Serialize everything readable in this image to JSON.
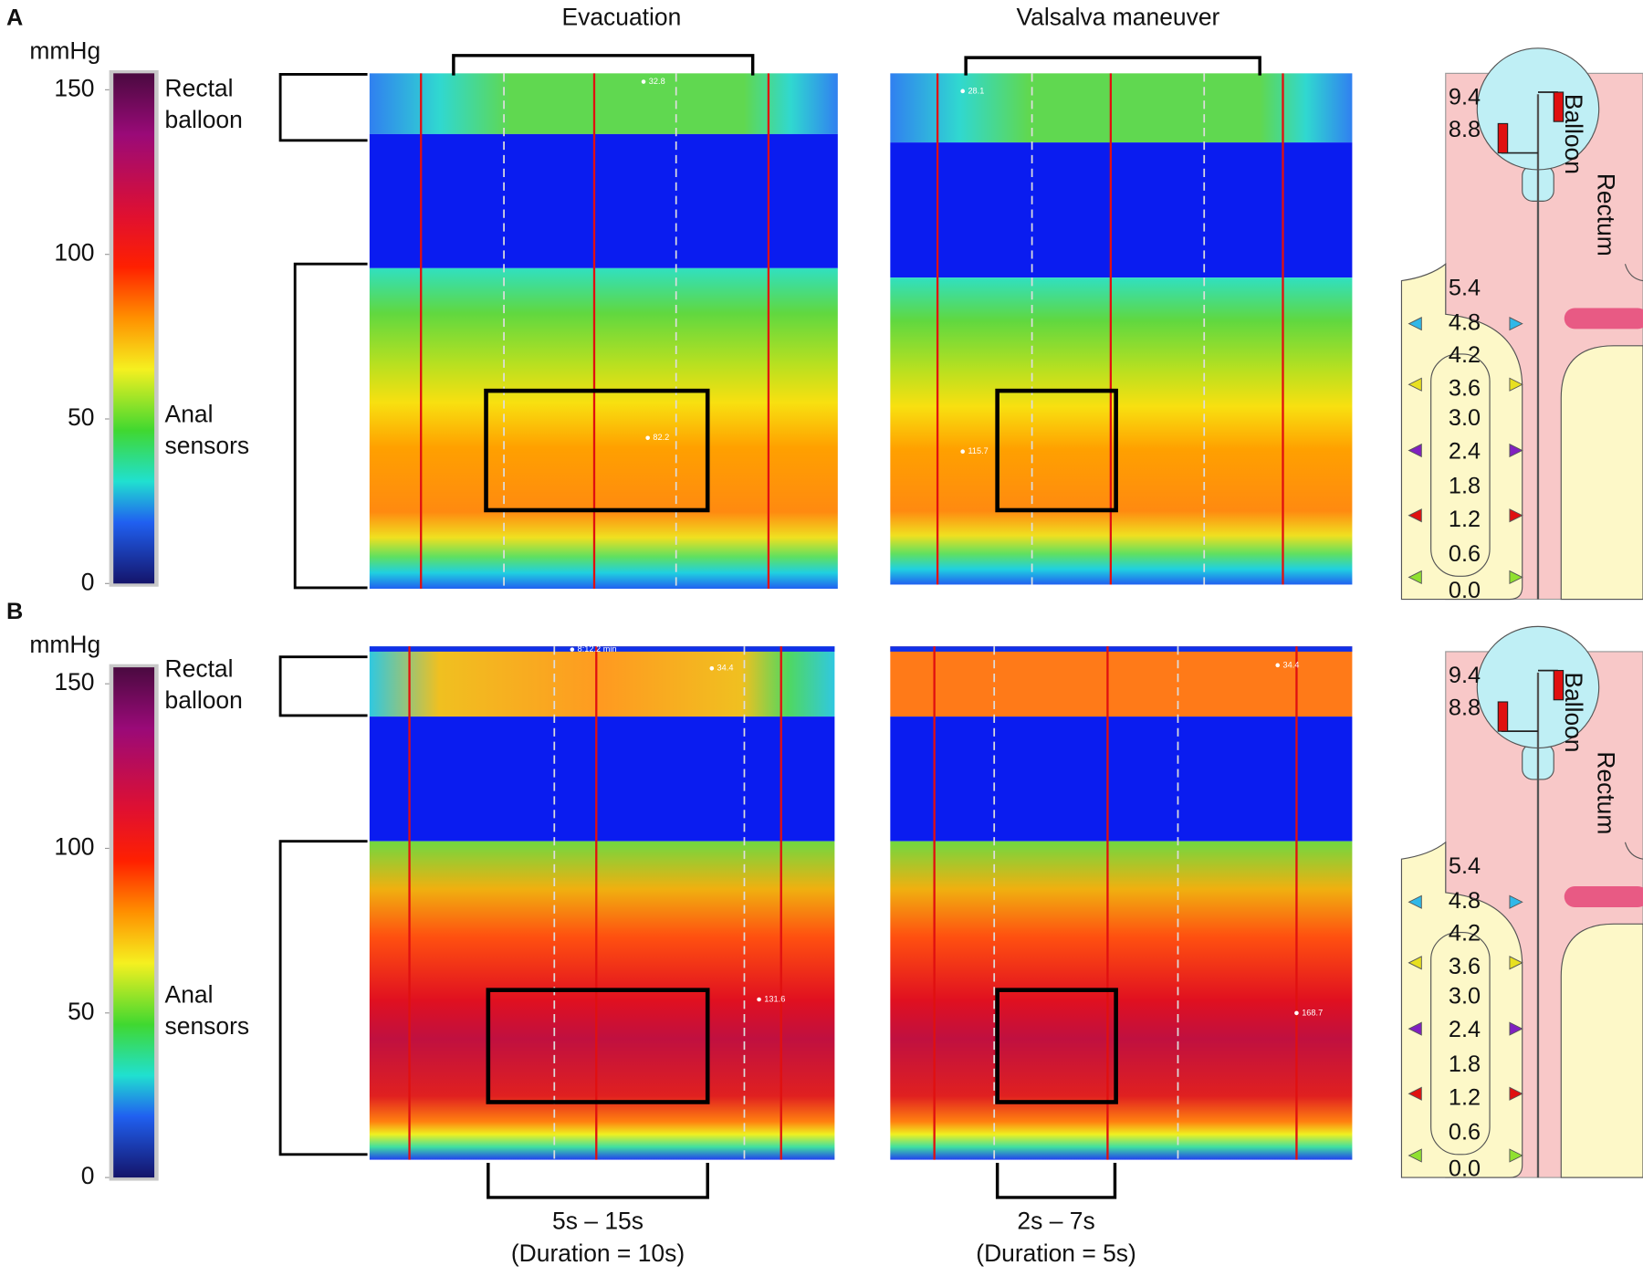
{
  "panels": [
    {
      "label": "A",
      "unit": "mmHg",
      "color_scale": {
        "lim": [
          0,
          155
        ],
        "ticks": [
          150,
          100,
          50,
          0
        ]
      },
      "rectal_label": [
        "Rectal",
        "balloon"
      ],
      "anal_label": [
        "Anal",
        "sensors"
      ],
      "maps": [
        {
          "title": "Evacuation",
          "readouts": [
            "32.8",
            "82.2"
          ]
        },
        {
          "title": "Valsalva maneuver",
          "readouts": [
            "28.1",
            "115.7"
          ]
        }
      ],
      "diagram": {
        "sensors": [
          "9.4",
          "8.8",
          "5.4",
          "4.8",
          "4.2",
          "3.6",
          "3.0",
          "2.4",
          "1.8",
          "1.2",
          "0.6",
          "0.0"
        ],
        "balloon": "Balloon",
        "rectum": "Rectum"
      }
    },
    {
      "label": "B",
      "unit": "mmHg",
      "color_scale": {
        "lim": [
          0,
          155
        ],
        "ticks": [
          150,
          100,
          50,
          0
        ]
      },
      "rectal_label": [
        "Rectal",
        "balloon"
      ],
      "anal_label": [
        "Anal",
        "sensors"
      ],
      "maps": [
        {
          "readouts": [
            "8:12.2 min",
            "131.6",
            "34.4"
          ],
          "window": [
            "5s – 15s",
            "(Duration = 10s)"
          ]
        },
        {
          "readouts": [
            "34.4",
            "168.7"
          ],
          "window": [
            "2s – 7s",
            "(Duration = 5s)"
          ]
        }
      ],
      "diagram": {
        "sensors": [
          "9.4",
          "8.8",
          "5.4",
          "4.8",
          "4.2",
          "3.6",
          "3.0",
          "2.4",
          "1.8",
          "1.2",
          "0.6",
          "0.0"
        ],
        "balloon": "Balloon",
        "rectum": "Rectum"
      }
    }
  ]
}
